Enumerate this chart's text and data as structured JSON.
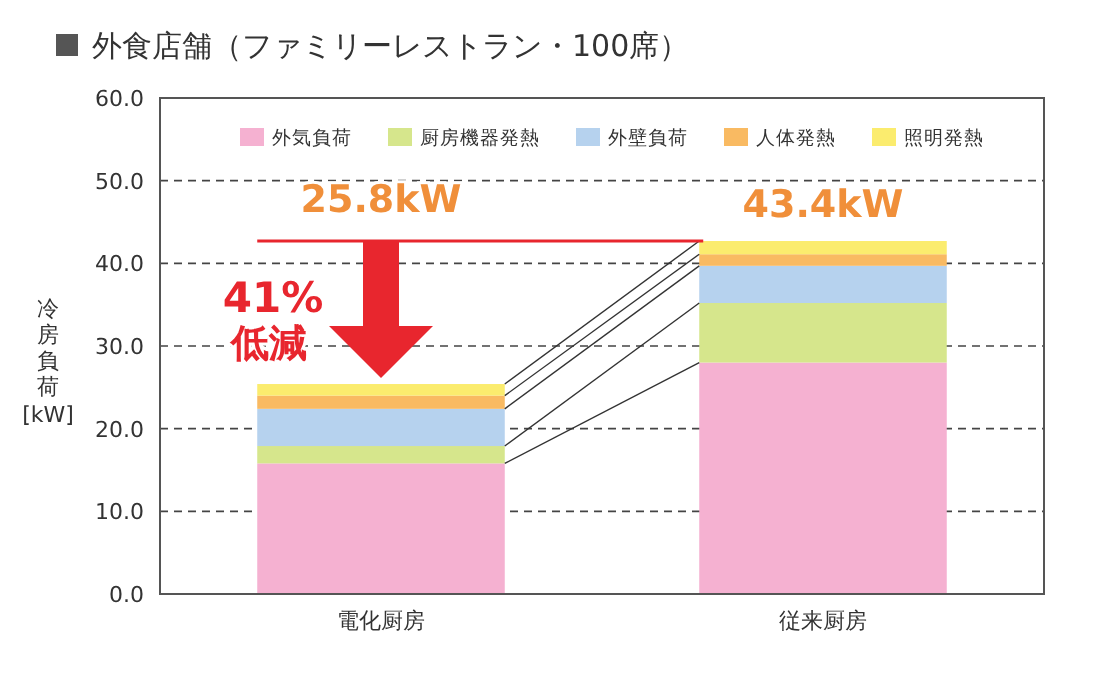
{
  "chart_data": {
    "type": "bar",
    "stacked": true,
    "title": "外食店舗（ファミリーレストラン・100席）",
    "ylabel": "冷房負荷[kW]",
    "categories": [
      "電化厨房",
      "従来厨房"
    ],
    "series": [
      {
        "name": "外気負荷",
        "color": "#f5b1d1",
        "values": [
          15.8,
          28.0
        ]
      },
      {
        "name": "厨房機器発熱",
        "color": "#d6e68c",
        "values": [
          2.1,
          7.2
        ]
      },
      {
        "name": "外壁負荷",
        "color": "#b6d2ee",
        "values": [
          4.5,
          4.5
        ]
      },
      {
        "name": "人体発熱",
        "color": "#f9ba62",
        "values": [
          1.6,
          1.4
        ]
      },
      {
        "name": "照明発熱",
        "color": "#fbec6e",
        "values": [
          1.4,
          1.6
        ]
      }
    ],
    "ylim": [
      0,
      60
    ],
    "yticks": [
      {
        "value": 0,
        "label": "0.0"
      },
      {
        "value": 10,
        "label": "10.0"
      },
      {
        "value": 20,
        "label": "20.0"
      },
      {
        "value": 30,
        "label": "30.0"
      },
      {
        "value": 40,
        "label": "40.0"
      },
      {
        "value": 50,
        "label": "50.0"
      },
      {
        "value": 60,
        "label": "60.0"
      }
    ],
    "grid": "y",
    "legend": "top",
    "annotations": [
      "25.8kW",
      {
        "text": "43.4kW",
        "x": "従来厨房",
        "y": 43.4
      },
      "41%",
      "低減"
    ]
  }
}
